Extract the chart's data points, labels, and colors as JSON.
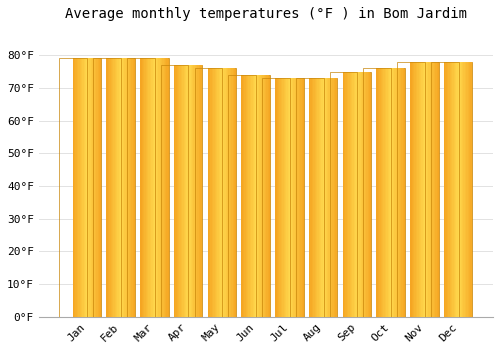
{
  "title": "Average monthly temperatures (°F ) in Bom Jardim",
  "months": [
    "Jan",
    "Feb",
    "Mar",
    "Apr",
    "May",
    "Jun",
    "Jul",
    "Aug",
    "Sep",
    "Oct",
    "Nov",
    "Dec"
  ],
  "values": [
    79,
    79,
    79,
    77,
    76,
    74,
    73,
    73,
    75,
    76,
    78,
    78
  ],
  "bar_color_center": "#FFD84D",
  "bar_color_edge": "#F5A623",
  "background_color": "#FFFFFF",
  "plot_bg_color": "#FFFFFF",
  "ylim": [
    0,
    88
  ],
  "yticks": [
    0,
    10,
    20,
    30,
    40,
    50,
    60,
    70,
    80
  ],
  "grid_color": "#DDDDDD",
  "title_fontsize": 10,
  "tick_fontsize": 8,
  "bar_width": 0.82
}
